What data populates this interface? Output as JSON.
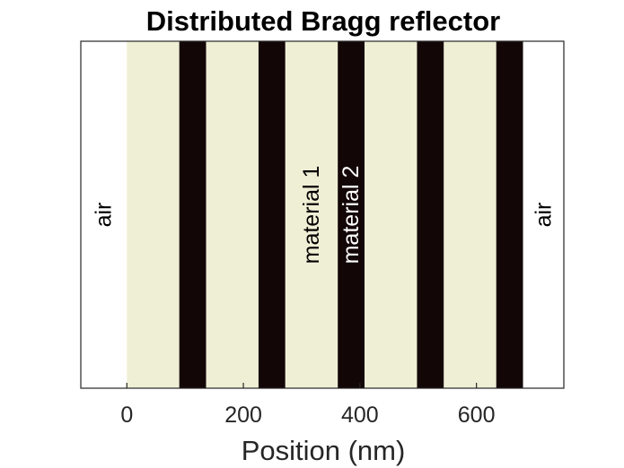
{
  "chart_data": {
    "type": "bar",
    "title": "Distributed Bragg reflector",
    "xlabel": "Position (nm)",
    "ylabel": "",
    "xlim": [
      -79,
      750
    ],
    "ylim": [
      0,
      1
    ],
    "xticks": [
      0,
      200,
      400,
      600
    ],
    "xtick_labels": [
      "0",
      "200",
      "400",
      "600"
    ],
    "grid": false,
    "layers": [
      {
        "material": "air",
        "x_start": -79,
        "x_end": 0,
        "color": "#ffffff"
      },
      {
        "material": "material 1",
        "x_start": 0,
        "x_end": 90,
        "color": "#efefd6"
      },
      {
        "material": "material 2",
        "x_start": 90,
        "x_end": 136,
        "color": "#130606"
      },
      {
        "material": "material 1",
        "x_start": 136,
        "x_end": 226,
        "color": "#efefd6"
      },
      {
        "material": "material 2",
        "x_start": 226,
        "x_end": 272,
        "color": "#130606"
      },
      {
        "material": "material 1",
        "x_start": 272,
        "x_end": 362,
        "color": "#efefd6"
      },
      {
        "material": "material 2",
        "x_start": 362,
        "x_end": 408,
        "color": "#130606"
      },
      {
        "material": "material 1",
        "x_start": 408,
        "x_end": 498,
        "color": "#efefd6"
      },
      {
        "material": "material 2",
        "x_start": 498,
        "x_end": 544,
        "color": "#130606"
      },
      {
        "material": "material 1",
        "x_start": 544,
        "x_end": 634,
        "color": "#efefd6"
      },
      {
        "material": "material 2",
        "x_start": 634,
        "x_end": 680,
        "color": "#130606"
      },
      {
        "material": "air",
        "x_start": 680,
        "x_end": 750,
        "color": "#ffffff"
      }
    ],
    "annotations": [
      {
        "text": "air",
        "x": -40,
        "color": "#000000"
      },
      {
        "text": "material 1",
        "x": 317,
        "color": "#000000"
      },
      {
        "text": "material 2",
        "x": 385,
        "color": "#ffffff"
      },
      {
        "text": "air",
        "x": 715,
        "color": "#000000"
      }
    ]
  }
}
